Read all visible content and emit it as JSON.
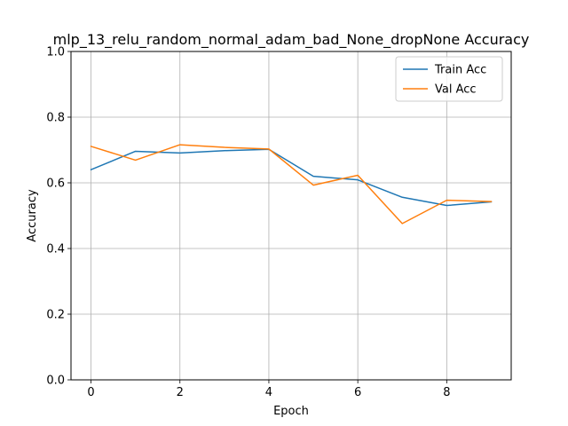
{
  "chart_data": {
    "type": "line",
    "title": "mlp_13_relu_random_normal_adam_bad_None_dropNone Accuracy",
    "xlabel": "Epoch",
    "ylabel": "Accuracy",
    "x": [
      0,
      1,
      2,
      3,
      4,
      5,
      6,
      7,
      8,
      9
    ],
    "xlim": [
      -0.45,
      9.45
    ],
    "ylim": [
      0.0,
      1.0
    ],
    "xticks": [
      0,
      2,
      4,
      6,
      8
    ],
    "yticks": [
      0.0,
      0.2,
      0.4,
      0.6,
      0.8,
      1.0
    ],
    "xtick_labels": [
      "0",
      "2",
      "4",
      "6",
      "8"
    ],
    "ytick_labels": [
      "0.0",
      "0.2",
      "0.4",
      "0.6",
      "0.8",
      "1.0"
    ],
    "grid": true,
    "legend_position": "top-right",
    "series": [
      {
        "name": "Train Acc",
        "color": "#1f77b4",
        "values": [
          0.64,
          0.696,
          0.691,
          0.698,
          0.702,
          0.62,
          0.609,
          0.556,
          0.531,
          0.542
        ]
      },
      {
        "name": "Val Acc",
        "color": "#ff7f0e",
        "values": [
          0.711,
          0.669,
          0.716,
          0.708,
          0.703,
          0.593,
          0.623,
          0.476,
          0.547,
          0.543
        ]
      }
    ]
  }
}
